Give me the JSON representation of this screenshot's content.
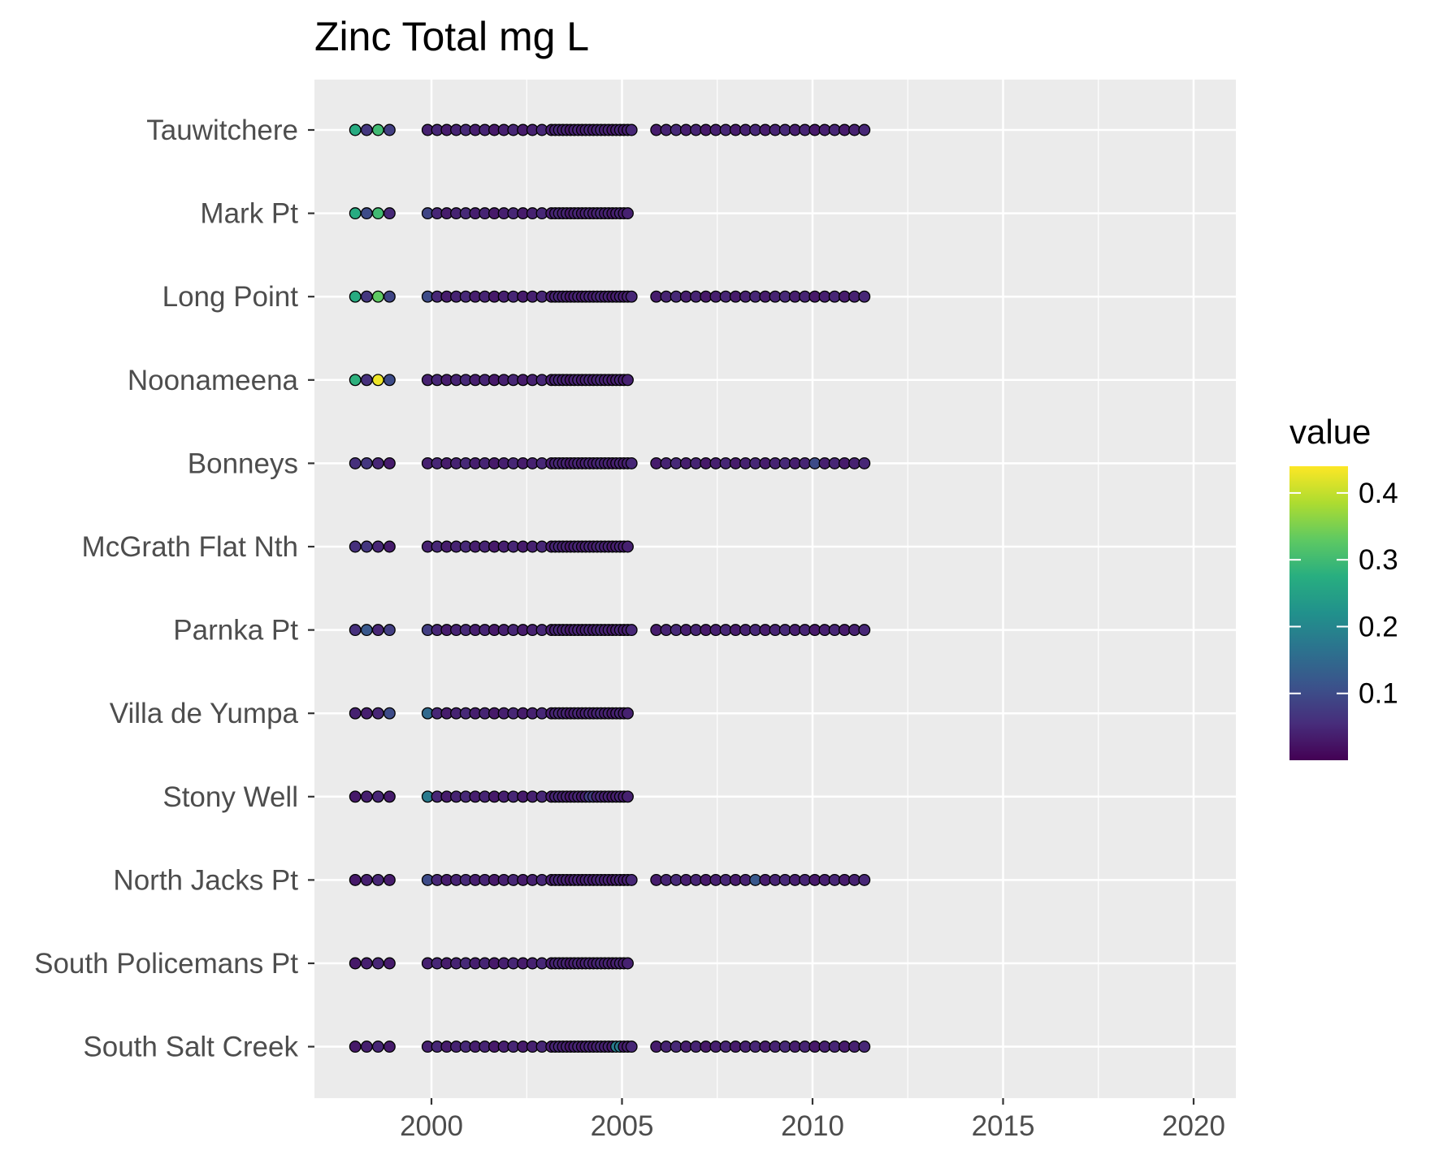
{
  "chart_data": {
    "type": "scatter",
    "title": "Zinc Total mg L",
    "xlabel": "",
    "ylabel": "",
    "xlim": [
      1997.6,
      2021.0
    ],
    "x_ticks": [
      "2000",
      "2005",
      "2010",
      "2015",
      "2020"
    ],
    "grid": true,
    "legend": {
      "title": "value",
      "position": "right",
      "scale": "viridis",
      "range": [
        0.0,
        0.44
      ],
      "ticks": [
        "0.1",
        "0.2",
        "0.3",
        "0.4"
      ]
    },
    "sites": [
      "Tauwitchere",
      "Mark Pt",
      "Long Point",
      "Noonameena",
      "Bonneys",
      "McGrath Flat Nth",
      "Parnka Pt",
      "Villa de Yumpa",
      "Stony Well",
      "North Jacks Pt",
      "South Policemans Pt",
      "South Salt Creek"
    ],
    "series": [
      {
        "name": "Tauwitchere",
        "x_start": 1998.0,
        "x_end": 2011.5,
        "base_value": 0.03,
        "highlights": [
          [
            1998.0,
            0.27
          ],
          [
            1998.3,
            0.07
          ],
          [
            1998.6,
            0.3
          ],
          [
            1998.9,
            0.08
          ],
          [
            2001.8,
            0.2
          ],
          [
            2009.1,
            0.1
          ],
          [
            2009.4,
            0.07
          ]
        ]
      },
      {
        "name": "Mark Pt",
        "x_start": 1998.0,
        "x_end": 2005.2,
        "base_value": 0.03,
        "highlights": [
          [
            1998.0,
            0.27
          ],
          [
            1998.3,
            0.1
          ],
          [
            1998.6,
            0.3
          ],
          [
            1998.9,
            0.05
          ],
          [
            1999.9,
            0.09
          ],
          [
            2001.8,
            0.2
          ]
        ]
      },
      {
        "name": "Long Point",
        "x_start": 1998.0,
        "x_end": 2011.5,
        "base_value": 0.03,
        "highlights": [
          [
            1998.0,
            0.27
          ],
          [
            1998.3,
            0.07
          ],
          [
            1998.6,
            0.33
          ],
          [
            1998.9,
            0.09
          ],
          [
            1999.9,
            0.1
          ],
          [
            2001.8,
            0.2
          ],
          [
            2008.9,
            0.15
          ]
        ]
      },
      {
        "name": "Noonameena",
        "x_start": 1998.0,
        "x_end": 2005.2,
        "base_value": 0.03,
        "highlights": [
          [
            1998.0,
            0.28
          ],
          [
            1998.3,
            0.06
          ],
          [
            1998.6,
            0.43
          ],
          [
            1998.9,
            0.1
          ],
          [
            2001.8,
            0.2
          ]
        ]
      },
      {
        "name": "Bonneys",
        "x_start": 1998.0,
        "x_end": 2011.5,
        "base_value": 0.03,
        "highlights": [
          [
            1998.0,
            0.06
          ],
          [
            1998.3,
            0.07
          ],
          [
            2001.8,
            0.2
          ],
          [
            2010.1,
            0.1
          ]
        ]
      },
      {
        "name": "McGrath Flat Nth",
        "x_start": 1998.0,
        "x_end": 2005.2,
        "base_value": 0.03,
        "highlights": [
          [
            1998.0,
            0.06
          ],
          [
            1998.3,
            0.07
          ],
          [
            2001.8,
            0.2
          ]
        ]
      },
      {
        "name": "Parnka Pt",
        "x_start": 1998.0,
        "x_end": 2011.5,
        "base_value": 0.03,
        "highlights": [
          [
            1998.0,
            0.06
          ],
          [
            1998.3,
            0.12
          ],
          [
            1998.9,
            0.08
          ],
          [
            1999.9,
            0.08
          ],
          [
            2001.8,
            0.2
          ]
        ]
      },
      {
        "name": "Villa de Yumpa",
        "x_start": 1998.0,
        "x_end": 2005.2,
        "base_value": 0.03,
        "highlights": [
          [
            1998.0,
            0.04
          ],
          [
            1998.9,
            0.1
          ],
          [
            1999.9,
            0.15
          ],
          [
            2001.8,
            0.2
          ]
        ]
      },
      {
        "name": "Stony Well",
        "x_start": 1998.0,
        "x_end": 2005.2,
        "base_value": 0.03,
        "highlights": [
          [
            1999.9,
            0.18
          ],
          [
            2001.8,
            0.2
          ],
          [
            2004.2,
            0.08
          ]
        ]
      },
      {
        "name": "North Jacks Pt",
        "x_start": 1998.0,
        "x_end": 2011.5,
        "base_value": 0.03,
        "highlights": [
          [
            1999.9,
            0.1
          ],
          [
            2001.8,
            0.2
          ],
          [
            2006.1,
            0.07
          ],
          [
            2008.5,
            0.12
          ],
          [
            2009.1,
            0.1
          ]
        ]
      },
      {
        "name": "South Policemans Pt",
        "x_start": 1998.0,
        "x_end": 2005.2,
        "base_value": 0.03,
        "highlights": [
          [
            2001.8,
            0.2
          ]
        ]
      },
      {
        "name": "South Salt Creek",
        "x_start": 1998.0,
        "x_end": 2011.5,
        "base_value": 0.03,
        "highlights": [
          [
            2001.8,
            0.2
          ],
          [
            2004.9,
            0.18
          ],
          [
            2008.6,
            0.1
          ]
        ]
      }
    ],
    "sampling_pattern": {
      "early_years": [
        1998.0,
        1998.3,
        1998.6,
        1998.9
      ],
      "dense_from": 1999.9
    }
  }
}
